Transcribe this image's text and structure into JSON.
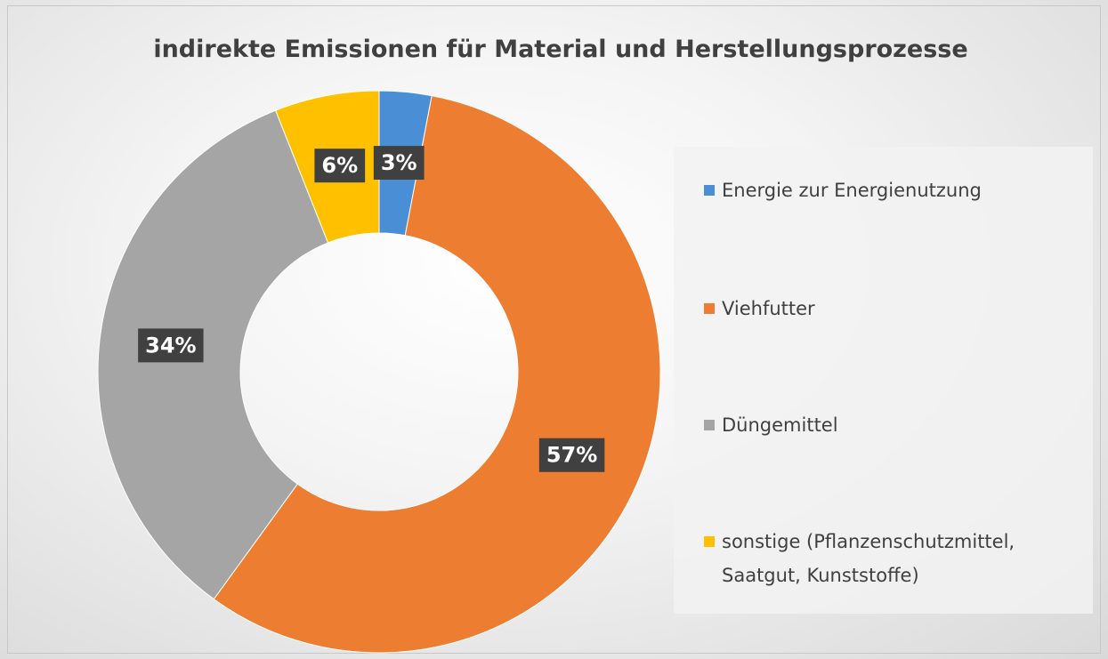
{
  "chart_data": {
    "type": "donut",
    "title": "indirekte Emissionen für Material und Herstellungsprozesse",
    "categories": [
      "Energie zur Energienutzung",
      "Viehfutter",
      "Düngemittel",
      "sonstige (Pflanzenschutzmittel, Saatgut, Kunststoffe)"
    ],
    "values": [
      3,
      57,
      34,
      6
    ],
    "value_labels": [
      "3%",
      "57%",
      "34%",
      "6%"
    ],
    "colors": [
      "#4a8fd6",
      "#ed7d31",
      "#a5a5a5",
      "#ffc000"
    ],
    "legend": "right"
  }
}
